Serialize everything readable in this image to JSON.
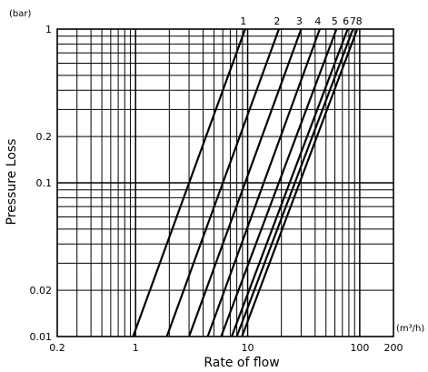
{
  "chart_data": {
    "type": "line",
    "xscale": "log",
    "yscale": "log",
    "xlim": [
      0.2,
      200
    ],
    "ylim": [
      0.01,
      1
    ],
    "xlabel": "Rate of flow",
    "ylabel": "Pressure Loss",
    "xunit": "(m³/h)",
    "yunit": "(bar)",
    "grid": true,
    "xticks": [
      {
        "value": 0.2,
        "label": "0.2"
      },
      {
        "value": 1,
        "label": "1"
      },
      {
        "value": 10,
        "label": "10"
      },
      {
        "value": 100,
        "label": "100"
      },
      {
        "value": 200,
        "label": "200"
      }
    ],
    "yticks": [
      {
        "value": 0.01,
        "label": "0.01"
      },
      {
        "value": 0.02,
        "label": "0.02"
      },
      {
        "value": 0.1,
        "label": "0.1"
      },
      {
        "value": 0.2,
        "label": "0.2"
      },
      {
        "value": 1,
        "label": "1"
      }
    ],
    "xgrid": [
      0.3,
      0.4,
      0.5,
      0.6,
      0.7,
      0.8,
      0.9,
      1,
      2,
      3,
      4,
      5,
      6,
      7,
      8,
      9,
      10,
      20,
      30,
      40,
      50,
      60,
      70,
      80,
      90,
      100
    ],
    "ygrid": [
      0.02,
      0.03,
      0.04,
      0.05,
      0.06,
      0.07,
      0.08,
      0.09,
      0.1,
      0.2,
      0.3,
      0.4,
      0.5,
      0.6,
      0.7,
      0.8,
      0.9
    ],
    "series": [
      {
        "name": "1",
        "points": [
          [
            0.95,
            0.01
          ],
          [
            9.5,
            1
          ]
        ]
      },
      {
        "name": "2",
        "points": [
          [
            1.9,
            0.01
          ],
          [
            19,
            1
          ]
        ]
      },
      {
        "name": "3",
        "points": [
          [
            3.0,
            0.01
          ],
          [
            30,
            1
          ]
        ]
      },
      {
        "name": "4",
        "points": [
          [
            4.4,
            0.01
          ],
          [
            44,
            1
          ]
        ]
      },
      {
        "name": "5",
        "points": [
          [
            5.8,
            0.01
          ],
          [
            62,
            1
          ]
        ]
      },
      {
        "name": "6",
        "points": [
          [
            7.2,
            0.01
          ],
          [
            78,
            1
          ]
        ]
      },
      {
        "name": "7",
        "points": [
          [
            8.0,
            0.01
          ],
          [
            87,
            1
          ]
        ]
      },
      {
        "name": "8",
        "points": [
          [
            8.9,
            0.01
          ],
          [
            95,
            1
          ]
        ]
      }
    ]
  }
}
